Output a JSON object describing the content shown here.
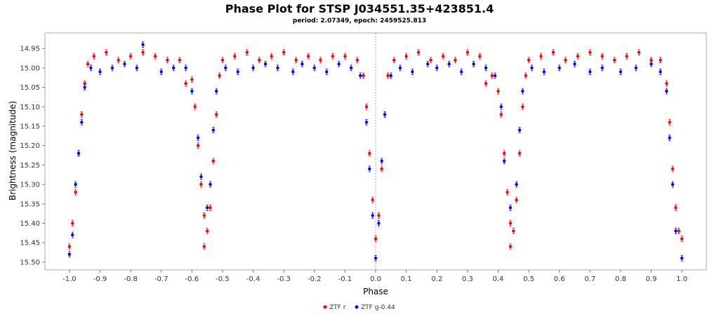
{
  "chart_data": {
    "type": "scatter",
    "title": "Phase Plot for STSP J034551.35+423851.4",
    "subtitle": "period: 2.07349, epoch: 2459525.813",
    "xlabel": "Phase",
    "ylabel": "Brightness (magnitude)",
    "xlim": [
      -1.08,
      1.08
    ],
    "ylim": [
      15.52,
      14.91
    ],
    "y_inverted": true,
    "x_ticks": [
      "-1.0",
      "-0.9",
      "-0.8",
      "-0.7",
      "-0.6",
      "-0.5",
      "-0.4",
      "-0.3",
      "-0.2",
      "-0.1",
      "0.0",
      "0.1",
      "0.2",
      "0.3",
      "0.4",
      "0.5",
      "0.6",
      "0.7",
      "0.8",
      "0.9",
      "1.0"
    ],
    "y_ticks": [
      "14.95",
      "15.00",
      "15.05",
      "15.10",
      "15.15",
      "15.20",
      "15.25",
      "15.30",
      "15.35",
      "15.40",
      "15.45",
      "15.50"
    ],
    "legend_placement": "bottom-center",
    "error_bars": true,
    "reference_line_x": 0.0,
    "colors": {
      "ZTF r": "#ff0000",
      "ZTF g-0.44": "#0000ff",
      "reference_line": "#9999ff"
    },
    "series": [
      {
        "name": "ZTF r",
        "points": [
          [
            -1.0,
            15.46
          ],
          [
            -0.99,
            15.4
          ],
          [
            -0.98,
            15.32
          ],
          [
            -0.97,
            15.22
          ],
          [
            -0.96,
            15.12
          ],
          [
            -0.95,
            15.04
          ],
          [
            -0.94,
            14.99
          ],
          [
            -0.92,
            14.97
          ],
          [
            -0.88,
            14.96
          ],
          [
            -0.84,
            14.98
          ],
          [
            -0.8,
            14.97
          ],
          [
            -0.76,
            14.96
          ],
          [
            -0.72,
            14.97
          ],
          [
            -0.68,
            14.98
          ],
          [
            -0.64,
            14.98
          ],
          [
            -0.62,
            15.04
          ],
          [
            -0.6,
            15.03
          ],
          [
            -0.59,
            15.1
          ],
          [
            -0.58,
            15.2
          ],
          [
            -0.57,
            15.3
          ],
          [
            -0.56,
            15.38
          ],
          [
            -0.55,
            15.42
          ],
          [
            -0.56,
            15.46
          ],
          [
            -0.54,
            15.36
          ],
          [
            -0.53,
            15.24
          ],
          [
            -0.52,
            15.12
          ],
          [
            -0.51,
            15.02
          ],
          [
            -0.5,
            14.98
          ],
          [
            -0.46,
            14.97
          ],
          [
            -0.42,
            14.96
          ],
          [
            -0.38,
            14.98
          ],
          [
            -0.34,
            14.97
          ],
          [
            -0.3,
            14.96
          ],
          [
            -0.26,
            14.98
          ],
          [
            -0.22,
            14.97
          ],
          [
            -0.18,
            14.98
          ],
          [
            -0.14,
            14.97
          ],
          [
            -0.1,
            14.97
          ],
          [
            -0.06,
            14.98
          ],
          [
            -0.04,
            15.02
          ],
          [
            -0.03,
            15.1
          ],
          [
            -0.02,
            15.22
          ],
          [
            -0.01,
            15.34
          ],
          [
            0.0,
            15.44
          ],
          [
            0.01,
            15.38
          ],
          [
            0.02,
            15.26
          ],
          [
            0.03,
            15.12
          ],
          [
            0.04,
            15.02
          ],
          [
            0.06,
            14.98
          ],
          [
            0.1,
            14.97
          ],
          [
            0.14,
            14.96
          ],
          [
            0.18,
            14.98
          ],
          [
            0.22,
            14.97
          ],
          [
            0.26,
            14.98
          ],
          [
            0.3,
            14.96
          ],
          [
            0.34,
            14.97
          ],
          [
            0.36,
            15.04
          ],
          [
            0.38,
            15.02
          ],
          [
            0.4,
            15.06
          ],
          [
            0.41,
            15.12
          ],
          [
            0.42,
            15.22
          ],
          [
            0.43,
            15.32
          ],
          [
            0.44,
            15.4
          ],
          [
            0.45,
            15.42
          ],
          [
            0.44,
            15.46
          ],
          [
            0.46,
            15.34
          ],
          [
            0.47,
            15.22
          ],
          [
            0.48,
            15.1
          ],
          [
            0.49,
            15.02
          ],
          [
            0.5,
            14.98
          ],
          [
            0.54,
            14.97
          ],
          [
            0.58,
            14.96
          ],
          [
            0.62,
            14.98
          ],
          [
            0.66,
            14.97
          ],
          [
            0.7,
            14.96
          ],
          [
            0.74,
            14.97
          ],
          [
            0.78,
            14.98
          ],
          [
            0.82,
            14.97
          ],
          [
            0.86,
            14.96
          ],
          [
            0.9,
            14.98
          ],
          [
            0.93,
            14.98
          ],
          [
            0.95,
            15.04
          ],
          [
            0.96,
            15.14
          ],
          [
            0.97,
            15.26
          ],
          [
            0.98,
            15.36
          ],
          [
            0.99,
            15.42
          ],
          [
            1.0,
            15.44
          ]
        ]
      },
      {
        "name": "ZTF g-0.44",
        "points": [
          [
            -1.0,
            15.48
          ],
          [
            -0.99,
            15.43
          ],
          [
            -0.98,
            15.3
          ],
          [
            -0.97,
            15.22
          ],
          [
            -0.96,
            15.14
          ],
          [
            -0.95,
            15.05
          ],
          [
            -0.93,
            15.0
          ],
          [
            -0.9,
            15.01
          ],
          [
            -0.86,
            15.0
          ],
          [
            -0.82,
            14.99
          ],
          [
            -0.78,
            15.0
          ],
          [
            -0.76,
            14.94
          ],
          [
            -0.7,
            15.01
          ],
          [
            -0.66,
            15.0
          ],
          [
            -0.62,
            15.0
          ],
          [
            -0.6,
            15.06
          ],
          [
            -0.58,
            15.18
          ],
          [
            -0.57,
            15.28
          ],
          [
            -0.55,
            15.36
          ],
          [
            -0.54,
            15.3
          ],
          [
            -0.53,
            15.16
          ],
          [
            -0.52,
            15.06
          ],
          [
            -0.49,
            15.0
          ],
          [
            -0.45,
            15.01
          ],
          [
            -0.4,
            15.0
          ],
          [
            -0.36,
            14.99
          ],
          [
            -0.32,
            15.0
          ],
          [
            -0.27,
            15.01
          ],
          [
            -0.24,
            14.99
          ],
          [
            -0.2,
            15.0
          ],
          [
            -0.16,
            15.01
          ],
          [
            -0.12,
            14.99
          ],
          [
            -0.08,
            15.0
          ],
          [
            -0.05,
            15.02
          ],
          [
            -0.03,
            15.14
          ],
          [
            -0.02,
            15.26
          ],
          [
            -0.01,
            15.38
          ],
          [
            0.0,
            15.49
          ],
          [
            0.01,
            15.4
          ],
          [
            0.02,
            15.24
          ],
          [
            0.03,
            15.12
          ],
          [
            0.05,
            15.02
          ],
          [
            0.08,
            15.0
          ],
          [
            0.12,
            15.01
          ],
          [
            0.17,
            14.99
          ],
          [
            0.2,
            15.0
          ],
          [
            0.24,
            14.99
          ],
          [
            0.28,
            15.01
          ],
          [
            0.32,
            14.99
          ],
          [
            0.36,
            15.0
          ],
          [
            0.39,
            15.02
          ],
          [
            0.41,
            15.1
          ],
          [
            0.42,
            15.24
          ],
          [
            0.44,
            15.36
          ],
          [
            0.46,
            15.3
          ],
          [
            0.47,
            15.16
          ],
          [
            0.48,
            15.06
          ],
          [
            0.51,
            15.0
          ],
          [
            0.55,
            15.01
          ],
          [
            0.6,
            15.0
          ],
          [
            0.65,
            14.99
          ],
          [
            0.7,
            15.01
          ],
          [
            0.74,
            15.0
          ],
          [
            0.8,
            15.01
          ],
          [
            0.85,
            15.0
          ],
          [
            0.9,
            14.99
          ],
          [
            0.93,
            15.01
          ],
          [
            0.95,
            15.06
          ],
          [
            0.96,
            15.18
          ],
          [
            0.97,
            15.3
          ],
          [
            0.98,
            15.42
          ],
          [
            1.0,
            15.49
          ]
        ]
      }
    ]
  }
}
